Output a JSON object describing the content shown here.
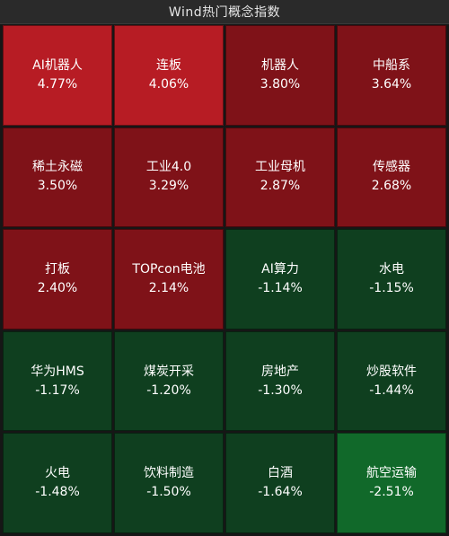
{
  "header": {
    "title": "Wind热门概念指数"
  },
  "colors": {
    "red_strong": "#b71c24",
    "red_mid": "#7f1218",
    "green_mid": "#0f3f1f",
    "green_strong": "#11692a"
  },
  "tiles": [
    {
      "name": "AI机器人",
      "pct": "4.77%",
      "color": "#b71c24"
    },
    {
      "name": "连板",
      "pct": "4.06%",
      "color": "#b71c24"
    },
    {
      "name": "机器人",
      "pct": "3.80%",
      "color": "#7f1218"
    },
    {
      "name": "中船系",
      "pct": "3.64%",
      "color": "#7f1218"
    },
    {
      "name": "稀土永磁",
      "pct": "3.50%",
      "color": "#7f1218"
    },
    {
      "name": "工业4.0",
      "pct": "3.29%",
      "color": "#7f1218"
    },
    {
      "name": "工业母机",
      "pct": "2.87%",
      "color": "#7f1218"
    },
    {
      "name": "传感器",
      "pct": "2.68%",
      "color": "#7f1218"
    },
    {
      "name": "打板",
      "pct": "2.40%",
      "color": "#7f1218"
    },
    {
      "name": "TOPcon电池",
      "pct": "2.14%",
      "color": "#7f1218"
    },
    {
      "name": "AI算力",
      "pct": "-1.14%",
      "color": "#0f3f1f"
    },
    {
      "name": "水电",
      "pct": "-1.15%",
      "color": "#0f3f1f"
    },
    {
      "name": "华为HMS",
      "pct": "-1.17%",
      "color": "#0f3f1f"
    },
    {
      "name": "煤炭开采",
      "pct": "-1.20%",
      "color": "#0f3f1f"
    },
    {
      "name": "房地产",
      "pct": "-1.30%",
      "color": "#0f3f1f"
    },
    {
      "name": "炒股软件",
      "pct": "-1.44%",
      "color": "#0f3f1f"
    },
    {
      "name": "火电",
      "pct": "-1.48%",
      "color": "#0f3f1f"
    },
    {
      "name": "饮料制造",
      "pct": "-1.50%",
      "color": "#0f3f1f"
    },
    {
      "name": "白酒",
      "pct": "-1.64%",
      "color": "#0f3f1f"
    },
    {
      "name": "航空运输",
      "pct": "-2.51%",
      "color": "#11692a"
    }
  ]
}
